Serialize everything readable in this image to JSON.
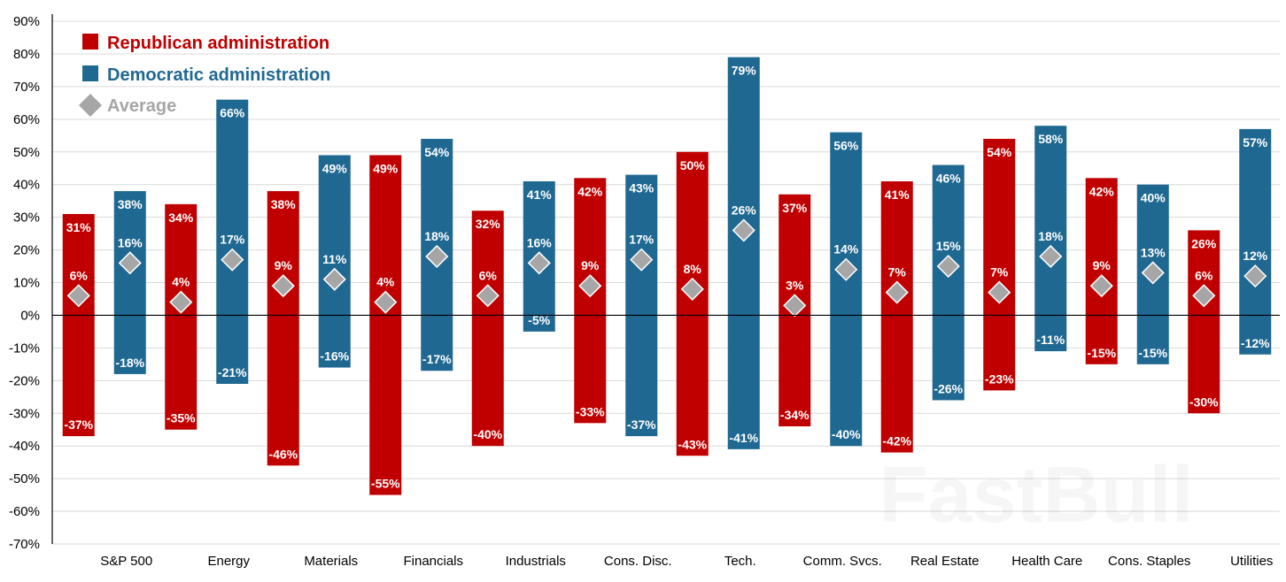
{
  "chart_data": {
    "type": "bar",
    "subtype": "floating-range-with-average",
    "title": "",
    "xlabel": "",
    "ylabel": "",
    "ylim": [
      -70,
      90
    ],
    "ytick_step": 10,
    "ytick_format": "percent",
    "grid": true,
    "legend_placement": "top-left",
    "colors": {
      "republican": "#C00000",
      "democratic": "#1F6891",
      "average": "#A6A6A6",
      "grid": "#D9D9D9"
    },
    "legend": {
      "republican": "Republican administration",
      "democratic": "Democratic administration",
      "average": "Average"
    },
    "categories": [
      "S&P 500",
      "Energy",
      "Materials",
      "Financials",
      "Industrials",
      "Cons. Disc.",
      "Tech.",
      "Comm. Svcs.",
      "Real Estate",
      "Health Care",
      "Cons. Staples",
      "Utilities"
    ],
    "series": [
      {
        "name": "Republican administration",
        "max": [
          31,
          34,
          38,
          49,
          32,
          42,
          50,
          37,
          41,
          54,
          42,
          26
        ],
        "min": [
          -37,
          -35,
          -46,
          -55,
          -40,
          -33,
          -43,
          -34,
          -42,
          -23,
          -15,
          -30
        ],
        "average": [
          6,
          4,
          9,
          4,
          6,
          9,
          8,
          3,
          7,
          7,
          9,
          6
        ]
      },
      {
        "name": "Democratic administration",
        "max": [
          38,
          66,
          49,
          54,
          41,
          43,
          79,
          56,
          46,
          58,
          40,
          57
        ],
        "min": [
          -18,
          -21,
          -16,
          -17,
          -5,
          -37,
          -41,
          -40,
          -26,
          -11,
          -15,
          -12
        ],
        "average": [
          16,
          17,
          11,
          18,
          16,
          17,
          26,
          14,
          15,
          18,
          13,
          12
        ]
      }
    ]
  },
  "watermark": "FastBull"
}
